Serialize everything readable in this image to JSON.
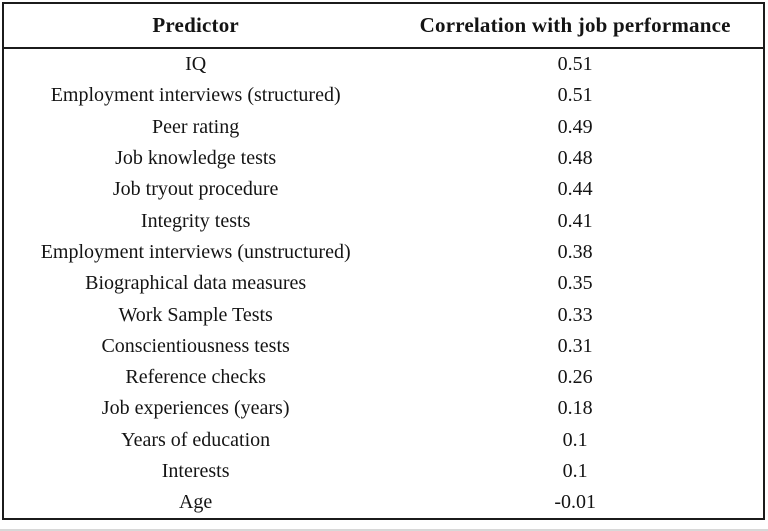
{
  "table": {
    "columns": {
      "predictor": "Predictor",
      "correlation": "Correlation with job performance"
    },
    "rows": [
      {
        "predictor": "IQ",
        "correlation": "0.51"
      },
      {
        "predictor": "Employment interviews (structured)",
        "correlation": "0.51"
      },
      {
        "predictor": "Peer rating",
        "correlation": "0.49"
      },
      {
        "predictor": "Job knowledge tests",
        "correlation": "0.48"
      },
      {
        "predictor": "Job tryout procedure",
        "correlation": "0.44"
      },
      {
        "predictor": "Integrity tests",
        "correlation": "0.41"
      },
      {
        "predictor": "Employment interviews (unstructured)",
        "correlation": "0.38"
      },
      {
        "predictor": "Biographical data measures",
        "correlation": "0.35"
      },
      {
        "predictor": "Work Sample Tests",
        "correlation": "0.33"
      },
      {
        "predictor": "Conscientiousness tests",
        "correlation": "0.31"
      },
      {
        "predictor": "Reference checks",
        "correlation": "0.26"
      },
      {
        "predictor": "Job experiences (years)",
        "correlation": "0.18"
      },
      {
        "predictor": "Years of education",
        "correlation": "0.1"
      },
      {
        "predictor": "Interests",
        "correlation": "0.1"
      },
      {
        "predictor": "Age",
        "correlation": "-0.01"
      }
    ]
  },
  "colors": {
    "border": "#1b1b1b",
    "text": "#141414",
    "background": "#ffffff"
  }
}
